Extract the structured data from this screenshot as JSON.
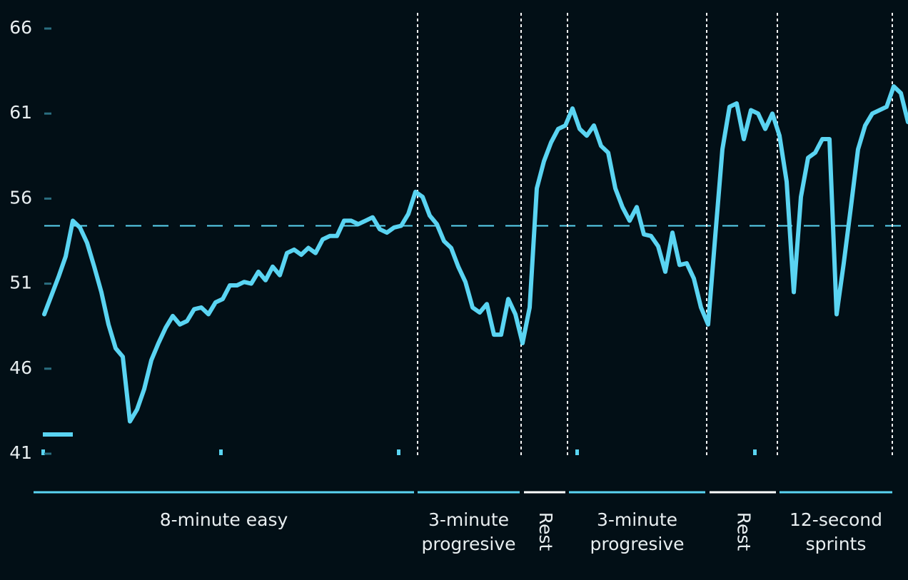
{
  "chart_data": {
    "type": "line",
    "ylim": [
      41,
      66
    ],
    "yticks": [
      41,
      46,
      51,
      56,
      61,
      66
    ],
    "reference_line": 54.4,
    "series": [
      {
        "color": "#5ad4f2",
        "values": [
          49.2,
          50.3,
          51.4,
          52.6,
          54.7,
          54.3,
          53.4,
          52.0,
          50.5,
          48.6,
          47.2,
          46.7,
          42.9,
          43.6,
          44.8,
          46.5,
          47.5,
          48.4,
          49.1,
          48.6,
          48.8,
          49.5,
          49.6,
          49.2,
          49.9,
          50.1,
          50.9,
          50.9,
          51.1,
          51.0,
          51.7,
          51.2,
          52.0,
          51.5,
          52.8,
          53.0,
          52.7,
          53.1,
          52.8,
          53.6,
          53.8,
          53.8,
          54.7,
          54.7,
          54.5,
          54.7,
          54.9,
          54.2,
          54.0,
          54.3,
          54.4,
          55.1,
          56.4,
          56.1,
          55.0,
          54.5,
          53.5,
          53.1,
          52.0,
          51.1,
          49.6,
          49.3,
          49.8,
          48.0,
          48.0,
          50.1,
          49.2,
          47.5,
          49.6,
          56.6,
          58.2,
          59.3,
          60.1,
          60.3,
          61.3,
          60.1,
          59.7,
          60.3,
          59.1,
          58.7,
          56.6,
          55.5,
          54.7,
          55.5,
          53.9,
          53.8,
          53.2,
          51.7,
          54.0,
          52.1,
          52.2,
          51.3,
          49.6,
          48.6,
          53.8,
          58.9,
          61.4,
          61.6,
          59.5,
          61.2,
          61.0,
          60.1,
          61.0,
          59.7,
          57.0,
          50.5,
          56.1,
          58.4,
          58.7,
          59.5,
          59.5,
          49.2,
          52.2,
          55.5,
          58.9,
          60.3,
          61.0,
          61.2,
          61.4,
          62.6,
          62.2,
          60.5
        ]
      }
    ],
    "segments": [
      {
        "label": [
          "8-minute easy"
        ],
        "color": "#5ad4f2"
      },
      {
        "label": [
          "3-minute",
          "progresive"
        ],
        "color": "#5ad4f2"
      },
      {
        "label": [
          "Rest"
        ],
        "color": "#ffffff"
      },
      {
        "label": [
          "3-minute",
          "progresive"
        ],
        "color": "#5ad4f2"
      },
      {
        "label": [
          "Rest"
        ],
        "color": "#ffffff"
      },
      {
        "label": [
          "12-second",
          "sprints"
        ],
        "color": "#5ad4f2"
      }
    ]
  }
}
